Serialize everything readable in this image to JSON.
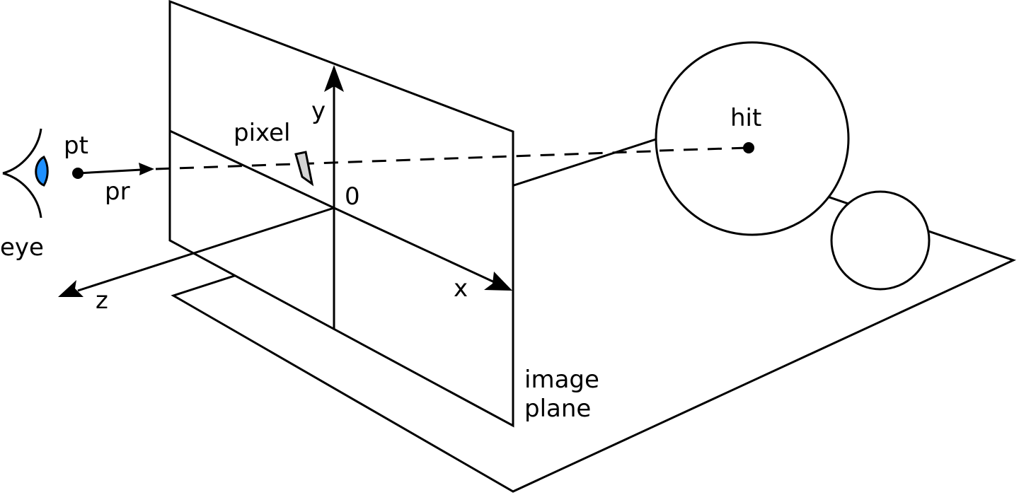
{
  "labels": {
    "eye": "eye",
    "pt": "pt",
    "pr": "pr",
    "pixel": "pixel",
    "y_axis": "y",
    "origin": "0",
    "x_axis": "x",
    "z_axis": "z",
    "hit": "hit",
    "image_plane_line1": "image",
    "image_plane_line2": "plane"
  },
  "colors": {
    "stroke": "#000000",
    "background": "#ffffff",
    "eye_iris": "#1e90ff",
    "pixel_fill": "#d3d3d3"
  },
  "icons": {
    "eye": "eye-icon"
  }
}
